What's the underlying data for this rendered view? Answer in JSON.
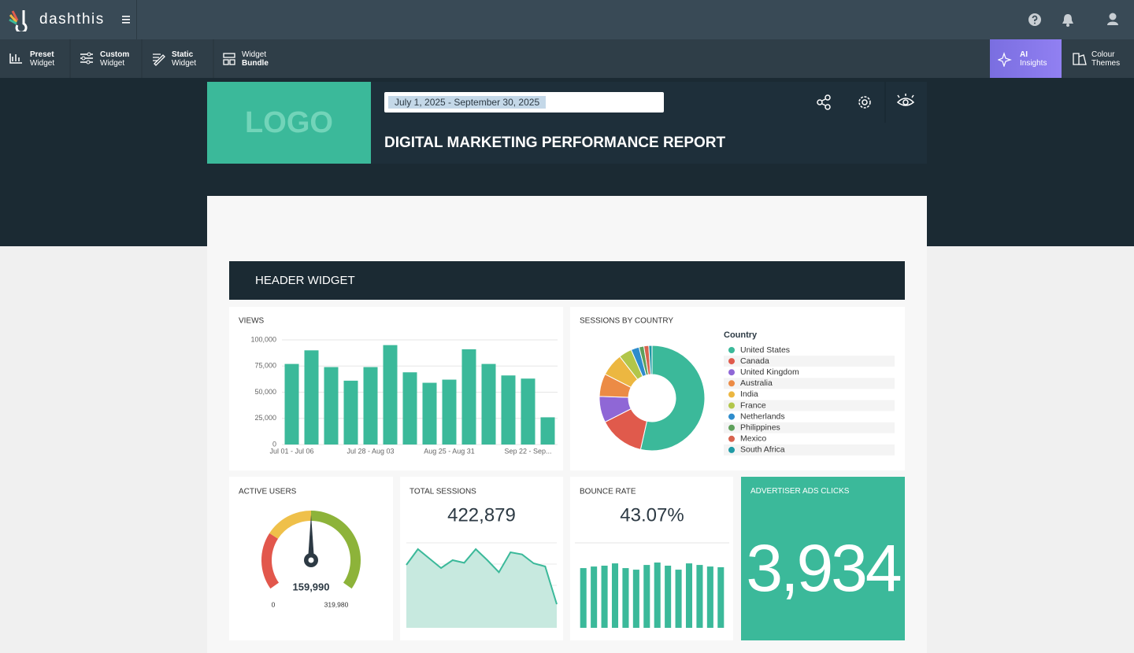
{
  "topbar": {
    "brand": "dashthis"
  },
  "toolbar": {
    "items": [
      {
        "line1": "Preset",
        "line2": "Widget"
      },
      {
        "line1": "Custom",
        "line2": "Widget"
      },
      {
        "line1": "Static",
        "line2": "Widget"
      },
      {
        "line1": "Widget",
        "line2": "Bundle"
      },
      {
        "line1": "AI",
        "line2": "Insights"
      },
      {
        "line1": "Colour",
        "line2": "Themes"
      }
    ]
  },
  "report": {
    "logo": "LOGO",
    "date_range": "July 1, 2025 - September 30, 2025",
    "title": "DIGITAL MARKETING PERFORMANCE REPORT",
    "header_widget": "HEADER WIDGET"
  },
  "chart_data": [
    {
      "type": "bar",
      "title": "VIEWS",
      "categories": [
        "Jul 01 - Jul 06",
        null,
        null,
        null,
        "Jul 28 - Aug 03",
        null,
        null,
        null,
        "Aug 25 - Aug 31",
        null,
        null,
        null,
        "Sep 22 - Sep...",
        null
      ],
      "values": [
        77000,
        90000,
        74000,
        61000,
        74000,
        95000,
        69000,
        59000,
        62000,
        91000,
        77000,
        66000,
        63000,
        26000
      ],
      "color": "#3bb99a",
      "ylim": [
        0,
        100000
      ],
      "yticks": [
        0,
        {
          "value": 25000,
          "label": "25,000"
        },
        {
          "value": 50000,
          "label": "50,000"
        },
        {
          "value": 75000,
          "label": "75,000"
        },
        {
          "value": 100000,
          "label": "100,000"
        }
      ],
      "grid": true
    },
    {
      "type": "donut",
      "title": "SESSIONS BY COUNTRY",
      "legend_title": "Country",
      "categories": [
        "United States",
        "Canada",
        "United Kingdom",
        "Australia",
        "India",
        "France",
        "Netherlands",
        "Philippines",
        "Mexico",
        "South Africa"
      ],
      "values": [
        53.5,
        14,
        8,
        7,
        7,
        4,
        2.5,
        1.5,
        1.5,
        1
      ],
      "colors": [
        "#3bb99a",
        "#e05a4c",
        "#8f67d6",
        "#ec8b45",
        "#ecb741",
        "#b2c64a",
        "#2e8ccc",
        "#5ea05b",
        "#d8634e",
        "#1f9aa5"
      ]
    },
    {
      "type": "gauge",
      "title": "ACTIVE USERS",
      "values": [
        159990
      ],
      "value_labels": [
        "159,990"
      ],
      "ylim": [
        0,
        319980
      ],
      "yticks": [
        0,
        {
          "value": 319980,
          "label": "319,980"
        }
      ],
      "bands": [
        {
          "to": 87000,
          "color": "#e2574c"
        },
        {
          "to": 160000,
          "color": "#efc04a"
        },
        {
          "to": 319980,
          "color": "#8db33a"
        }
      ]
    },
    {
      "type": "area",
      "title": "TOTAL SESSIONS",
      "kpi": "422,879",
      "values": [
        30000,
        37500,
        33000,
        28500,
        32250,
        31000,
        37500,
        32250,
        26500,
        36000,
        35000,
        30750,
        29250,
        11250
      ],
      "color": "#3bb99a",
      "grid": true
    },
    {
      "type": "bar",
      "title": "BOUNCE RATE",
      "kpi": "43.07%",
      "values": [
        41.8,
        42.9,
        43.5,
        45.1,
        41.8,
        40.7,
        44,
        45.7,
        43.5,
        40.7,
        45.1,
        44,
        42.9,
        42.4
      ],
      "color": "#3bb99a",
      "grid": true
    }
  ],
  "ads_widget": {
    "title": "ADVERTISER ADS CLICKS",
    "value": "3,934"
  }
}
